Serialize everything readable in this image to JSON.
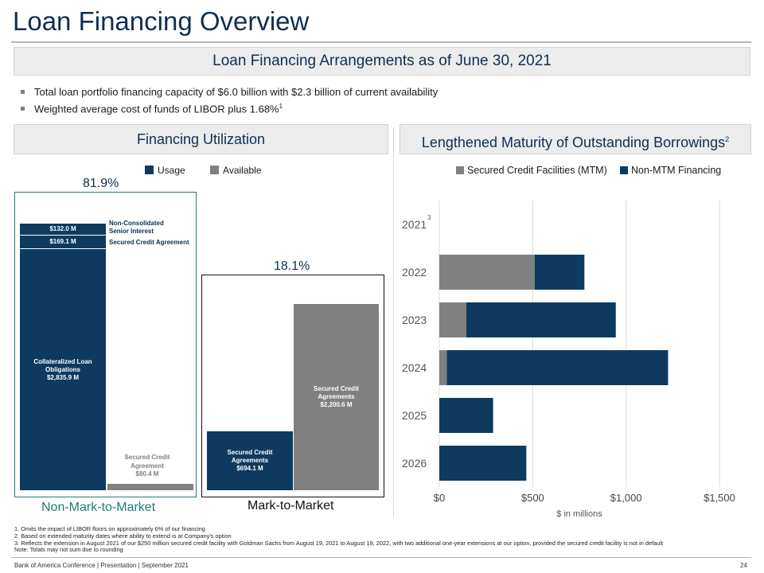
{
  "page": {
    "title": "Loan Financing Overview",
    "banner": "Loan Financing Arrangements as of June 30, 2021",
    "bullets": [
      {
        "text": "Total loan portfolio financing capacity of $6.0 billion with $2.3 billion of current availability",
        "sup": ""
      },
      {
        "text": "Weighted average cost of funds of LIBOR plus 1.68%",
        "sup": "1"
      }
    ],
    "left_header": "Financing Utilization",
    "right_header": "Lengthened Maturity of Outstanding Borrowings",
    "right_header_sup": "2"
  },
  "utilization": {
    "legend": {
      "usage": "Usage",
      "available": "Available"
    },
    "colors": {
      "usage": "#0e3a5f",
      "available": "#808080",
      "frame_left": "#1e7b7b",
      "frame_right": "#111111"
    },
    "nmtm_pct": "81.9%",
    "mtm_pct": "18.1%",
    "nmtm_label": "Non-Mark-to-Market",
    "mtm_label": "Mark-to-Market",
    "nmtm_usage": [
      {
        "value_label": "$132.0 M",
        "side_label": "Non-Consolidated Senior Interest"
      },
      {
        "value_label": "$169.1 M",
        "side_label": "Secured Credit Agreement"
      },
      {
        "name": "Collateralized Loan Obligations",
        "value_label": "$2,835.9 M"
      }
    ],
    "nmtm_available": {
      "name": "Secured Credit Agreement",
      "value_label": "$80.4 M"
    },
    "mtm_usage": {
      "name": "Secured Credit Agreements",
      "value_label": "$694.1 M"
    },
    "mtm_available": {
      "name": "Secured Credit Agreements",
      "value_label": "$2,200.6 M"
    }
  },
  "chart_data": {
    "type": "bar",
    "orientation": "horizontal",
    "stacked": true,
    "title": "Lengthened Maturity of Outstanding Borrowings",
    "categories": [
      "2021",
      "2022",
      "2023",
      "2024",
      "2025",
      "2026"
    ],
    "category_sup": [
      "3",
      "",
      "",
      "",
      "",
      ""
    ],
    "series": [
      {
        "name": "Secured Credit Facilities (MTM)",
        "color": "#808080",
        "values": [
          0,
          511,
          145,
          40,
          0,
          0
        ]
      },
      {
        "name": "Non-MTM Financing",
        "color": "#0e3a5f",
        "values": [
          0,
          266,
          800,
          1185,
          288,
          466
        ]
      }
    ],
    "xlim": [
      0,
      1500
    ],
    "xticks": [
      0,
      500,
      1000,
      1500
    ],
    "xtick_labels": [
      "$0",
      "$500",
      "$1,000",
      "$1,500"
    ],
    "xlabel": "$ in millions",
    "ylabel": "",
    "grid": true,
    "legend": "top"
  },
  "footnotes": [
    "1. Omits the impact of LIBOR floors on approximately 6% of our financing",
    "2. Based on extended maturity dates where ability to extend is at Company's option",
    "3. Reflects the extension in August 2021 of our $250 million secured credit facility with Goldman Sachs from August 19, 2021 to August 19, 2022, with two additional one-year extensions at our option, provided the secured credit facility is not in default",
    "Note: Totals may not sum due to rounding"
  ],
  "footer": {
    "left": "Bank of America Conference | Presentation | September 2021",
    "page": "24"
  }
}
